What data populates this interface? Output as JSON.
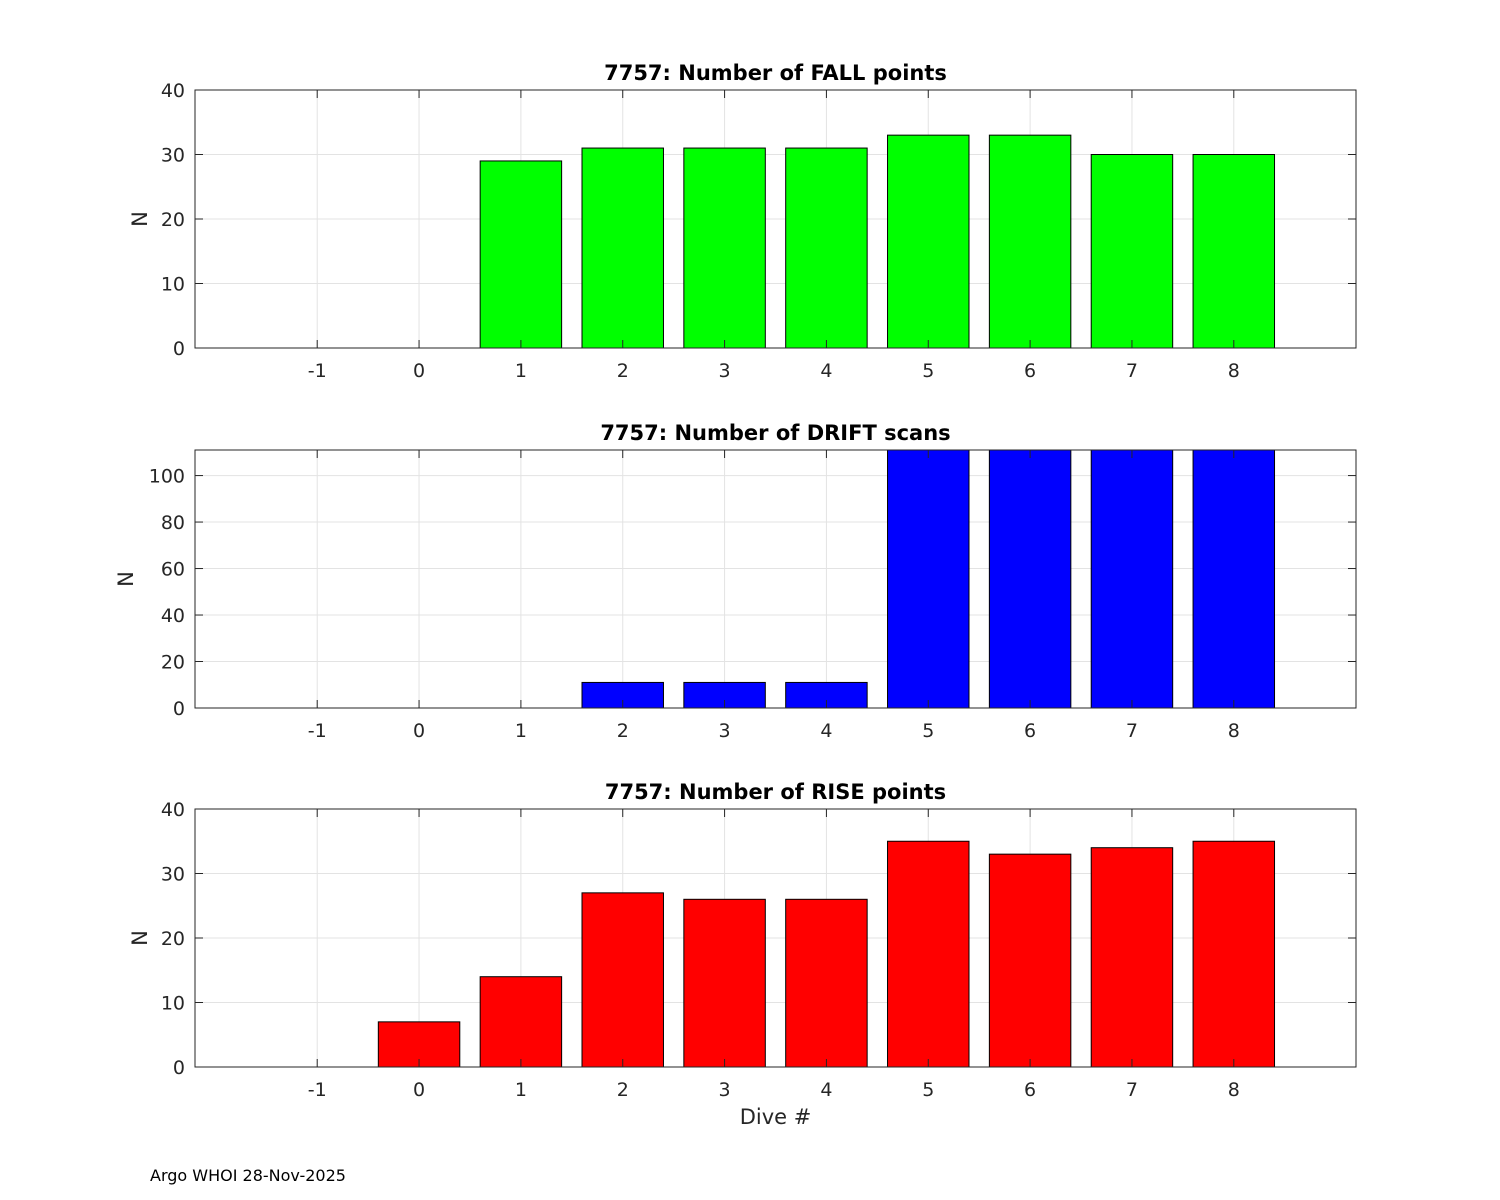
{
  "chart_data": [
    {
      "type": "bar",
      "title": "7757: Number of FALL points",
      "xlabel": "",
      "ylabel": "N",
      "color": "#00ff00",
      "categories": [
        -1,
        0,
        1,
        2,
        3,
        4,
        5,
        6,
        7,
        8
      ],
      "values": [
        0,
        0,
        29,
        31,
        31,
        31,
        33,
        33,
        30,
        30
      ],
      "xlim": [
        -2.2,
        9.2
      ],
      "ylim": [
        0,
        40
      ],
      "yticks": [
        0,
        10,
        20,
        30,
        40
      ],
      "grid": true
    },
    {
      "type": "bar",
      "title": "7757: Number of DRIFT scans",
      "xlabel": "",
      "ylabel": "N",
      "color": "#0000ff",
      "categories": [
        -1,
        0,
        1,
        2,
        3,
        4,
        5,
        6,
        7,
        8
      ],
      "values": [
        0,
        0,
        0,
        11,
        11,
        11,
        111,
        111,
        111,
        111
      ],
      "xlim": [
        -2.2,
        9.2
      ],
      "ylim": [
        0,
        111
      ],
      "yticks": [
        0,
        20,
        40,
        60,
        80,
        100
      ],
      "grid": true
    },
    {
      "type": "bar",
      "title": "7757: Number of RISE points",
      "xlabel": "Dive #",
      "ylabel": "N",
      "color": "#ff0000",
      "categories": [
        -1,
        0,
        1,
        2,
        3,
        4,
        5,
        6,
        7,
        8
      ],
      "values": [
        0,
        7,
        14,
        27,
        26,
        26,
        35,
        33,
        34,
        35
      ],
      "xlim": [
        -2.2,
        9.2
      ],
      "ylim": [
        0,
        40
      ],
      "yticks": [
        0,
        10,
        20,
        30,
        40
      ],
      "grid": true
    }
  ],
  "footer": "Argo WHOI 28-Nov-2025"
}
